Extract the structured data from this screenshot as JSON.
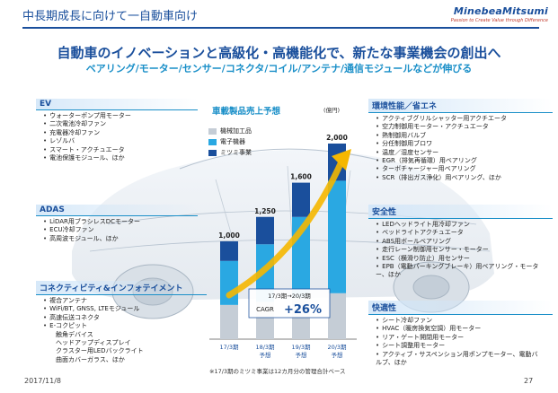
{
  "header": {
    "title": "中長期成長に向けて一自動車向け",
    "logo": "MinebeaMitsumi",
    "tagline": "Passion to Create Value through Difference"
  },
  "headline": "自動車のイノベーションと高級化・高機能化で、新たな事業機会の創出へ",
  "subheadline": "ベアリング/モーター/センサー/コネクタ/コイル/アンテナ/通信モジュールなどが伸びる",
  "categories": {
    "ev": {
      "title": "EV",
      "items": [
        "ウォーターポンプ用モーター",
        "二次電池冷却ファン",
        "充電器冷却ファン",
        "レゾルバ",
        "スマート・アクチュエータ",
        "電池保護モジュール、ほか"
      ]
    },
    "adas": {
      "title": "ADAS",
      "items": [
        "LiDAR用ブラシレスDCモーター",
        "ECU冷却ファン",
        "高周波モジュール、ほか"
      ]
    },
    "connectivity": {
      "title": "コネクティビティ&インフォテイメント",
      "items": [
        "複合アンテナ",
        "WiFi/BT, GNSS, LTEモジュール",
        "高速伝送コネクタ",
        "E-コクピット"
      ],
      "subitems": [
        "触角デバイス",
        "ヘッドアップディスプレイ",
        "クラスター用LEDバックライト",
        "曲面カバーガラス、ほか"
      ]
    },
    "env": {
      "title": "環境性能／省エネ",
      "items": [
        "アクティブグリルシャッター用アクチエータ",
        "空力制御用モーター・アクチュエータ",
        "熱制御用バルブ",
        "分任制御用ブロワ",
        "温度／湿度センサー",
        "EGR（排気再循環）用ベアリング",
        "ターボチャージャー用ベアリング",
        "SCR（排出ガス浄化）用ベアリング、ほか"
      ]
    },
    "safety": {
      "title": "安全性",
      "items": [
        "LEDヘッドライト用冷却ファン",
        "ベッドライトアクチュエータ",
        "ABS用ボールベアリング",
        "走行レーン制御用センサー・モーター",
        "ESC（横滑り防止）用センサー",
        "EPB（電動パーキングブレーキ）用ベアリング・モーター、ほか"
      ]
    },
    "comfort": {
      "title": "快適性",
      "items": [
        "シート冷却ファン",
        "HVAC（暖房換気空調）用モーター",
        "リア・ゲート開閉用モーター",
        "シート調整用モーター",
        "アクティブ・サスペンション用ポンプモーター、電動バルブ、ほか"
      ]
    }
  },
  "chart_data": {
    "type": "bar",
    "title": "車載製品売上予想",
    "unit": "(億円)",
    "categories": [
      "17/3期",
      "18/3期予想",
      "19/3期予想",
      "20/3期予想"
    ],
    "category_lines": [
      [
        "17/3期"
      ],
      [
        "18/3期",
        "予想"
      ],
      [
        "19/3期",
        "予想"
      ],
      [
        "20/3期",
        "予想"
      ]
    ],
    "totals": [
      1000,
      1250,
      1600,
      2000
    ],
    "total_labels": [
      "1,000",
      "1,250",
      "1,600",
      "2,000"
    ],
    "series": [
      {
        "name": "機械加工品",
        "values": [
          350,
          380,
          420,
          470
        ]
      },
      {
        "name": "電子機器",
        "values": [
          450,
          590,
          830,
          1150
        ]
      },
      {
        "name": "ミツミ事業",
        "values": [
          200,
          280,
          350,
          380
        ]
      }
    ],
    "colors": [
      "#c5cdd6",
      "#2aa8e2",
      "#1a4f9c"
    ],
    "cagr_period": "17/3期→20/3期",
    "cagr_label": "CAGR",
    "cagr_value": "+26%",
    "ylim": [
      0,
      2000
    ]
  },
  "footnote": "※17/3期のミツミ事業は12カ月分の管理合計ベース",
  "footer": {
    "date": "2017/11/8",
    "page": "27"
  }
}
